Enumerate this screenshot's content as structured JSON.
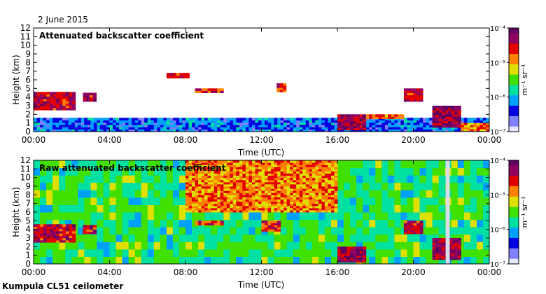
{
  "header": {
    "date": "2 June 2015"
  },
  "footer": {
    "instrument": "Kumpula CL51 ceilometer"
  },
  "colors": {
    "cmap": [
      "#e6e6ff",
      "#8080ff",
      "#0000e0",
      "#00a0ff",
      "#00e0a0",
      "#40e000",
      "#e0e000",
      "#ff8000",
      "#e00000",
      "#900060",
      "#600060"
    ]
  },
  "chart_data": [
    {
      "type": "heatmap",
      "title": "Attenuated backscatter coefficient",
      "xlabel": "Time (UTC)",
      "ylabel": "Height (km)",
      "xticks": [
        "00:00",
        "04:00",
        "08:00",
        "12:00",
        "16:00",
        "20:00",
        "00:00"
      ],
      "xlim_hours": [
        0,
        24
      ],
      "yticks": [
        0,
        1,
        2,
        3,
        4,
        5,
        6,
        7,
        8,
        9,
        10,
        11,
        12
      ],
      "ylim_km": [
        0,
        12
      ],
      "colorbar": {
        "label": "m⁻¹ sr⁻¹",
        "ticks": [
          "10⁻⁴",
          "10⁻⁵",
          "10⁻⁶",
          "10⁻⁷"
        ],
        "range": [
          1e-07,
          0.0001
        ],
        "scale": "log"
      },
      "features": [
        {
          "name": "boundary layer aerosol",
          "t0": 0,
          "t1": 24,
          "h0": 0,
          "h1": 1.6,
          "level": 0.25
        },
        {
          "name": "low cloud",
          "t0": 0,
          "t1": 2.2,
          "h0": 2.5,
          "h1": 4.6,
          "level": 0.85
        },
        {
          "name": "cloud",
          "t0": 2.6,
          "t1": 3.3,
          "h0": 3.5,
          "h1": 4.5,
          "level": 0.85
        },
        {
          "name": "mid cloud",
          "t0": 7.0,
          "t1": 8.2,
          "h0": 6.2,
          "h1": 6.8,
          "level": 0.8
        },
        {
          "name": "mid cloud",
          "t0": 8.5,
          "t1": 10.0,
          "h0": 4.5,
          "h1": 5.0,
          "level": 0.8
        },
        {
          "name": "mid cloud",
          "t0": 12.8,
          "t1": 13.3,
          "h0": 4.6,
          "h1": 5.6,
          "level": 0.8
        },
        {
          "name": "afternoon cloud",
          "t0": 16.0,
          "t1": 17.5,
          "h0": 0.2,
          "h1": 2.0,
          "level": 0.9
        },
        {
          "name": "cloud line",
          "t0": 17.5,
          "t1": 19.5,
          "h0": 1.5,
          "h1": 2.0,
          "level": 0.75
        },
        {
          "name": "evening cloud",
          "t0": 19.5,
          "t1": 20.5,
          "h0": 3.5,
          "h1": 5.0,
          "level": 0.85
        },
        {
          "name": "evening cloud",
          "t0": 21.0,
          "t1": 22.5,
          "h0": 0.5,
          "h1": 3.0,
          "level": 0.9
        },
        {
          "name": "late low cloud",
          "t0": 22.5,
          "t1": 24.0,
          "h0": 0.1,
          "h1": 1.0,
          "level": 0.7
        }
      ]
    },
    {
      "type": "heatmap",
      "title": "Raw attenuated backscatter coefficient",
      "xlabel": "Time (UTC)",
      "ylabel": "Height (km)",
      "xticks": [
        "00:00",
        "04:00",
        "08:00",
        "12:00",
        "16:00",
        "20:00",
        "00:00"
      ],
      "xlim_hours": [
        0,
        24
      ],
      "yticks": [
        0,
        1,
        2,
        3,
        4,
        5,
        6,
        7,
        8,
        9,
        10,
        11,
        12
      ],
      "ylim_km": [
        0,
        12
      ],
      "colorbar": {
        "label": "m⁻¹ sr⁻¹",
        "ticks": [
          "10⁻⁴",
          "10⁻⁵",
          "10⁻⁶",
          "10⁻⁷"
        ],
        "range": [
          1e-07,
          0.0001
        ],
        "scale": "log"
      },
      "features": [
        {
          "name": "noise background",
          "t0": 0,
          "t1": 24,
          "h0": 0,
          "h1": 12,
          "level": 0.45
        },
        {
          "name": "high noise",
          "t0": 8.0,
          "t1": 16.0,
          "h0": 6.0,
          "h1": 12.0,
          "level": 0.7
        },
        {
          "name": "low cloud",
          "t0": 0,
          "t1": 2.2,
          "h0": 2.5,
          "h1": 4.6,
          "level": 0.85
        },
        {
          "name": "cloud",
          "t0": 2.6,
          "t1": 3.3,
          "h0": 3.5,
          "h1": 4.5,
          "level": 0.85
        },
        {
          "name": "mid cloud",
          "t0": 8.5,
          "t1": 10.0,
          "h0": 4.5,
          "h1": 5.0,
          "level": 0.8
        },
        {
          "name": "mid cloud",
          "t0": 12.0,
          "t1": 13.0,
          "h0": 3.8,
          "h1": 5.0,
          "level": 0.8
        },
        {
          "name": "afternoon cloud",
          "t0": 16.0,
          "t1": 17.5,
          "h0": 0.2,
          "h1": 2.0,
          "level": 0.9
        },
        {
          "name": "evening cloud",
          "t0": 19.5,
          "t1": 20.5,
          "h0": 3.5,
          "h1": 5.0,
          "level": 0.85
        },
        {
          "name": "evening cloud",
          "t0": 21.0,
          "t1": 22.5,
          "h0": 0.5,
          "h1": 3.0,
          "level": 0.9
        },
        {
          "name": "missing data",
          "t0": 21.7,
          "t1": 21.9,
          "h0": 0,
          "h1": 12,
          "level": 0.0
        }
      ]
    }
  ]
}
